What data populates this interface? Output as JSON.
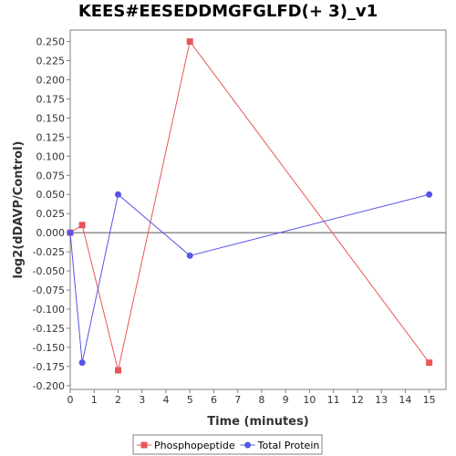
{
  "chart_data": {
    "type": "line",
    "title": "KEES#EESEDDMGFGLFD(+ 3)_v1",
    "xlabel": "Time (minutes)",
    "ylabel": "log2(dDAVP/Control)",
    "xlim": [
      0,
      15.7
    ],
    "ylim": [
      -0.205,
      0.265
    ],
    "x_ticks": [
      0,
      1,
      2,
      3,
      4,
      5,
      6,
      7,
      8,
      9,
      10,
      11,
      12,
      13,
      14,
      15
    ],
    "x_tick_labels": [
      "0",
      "1",
      "2",
      "3",
      "4",
      "5",
      "6",
      "7",
      "8",
      "9",
      "10",
      "11",
      "12",
      "13",
      "14",
      "15"
    ],
    "y_ticks": [
      0.25,
      0.225,
      0.2,
      0.175,
      0.15,
      0.125,
      0.1,
      0.075,
      0.05,
      0.025,
      0.0,
      -0.025,
      -0.05,
      -0.075,
      -0.1,
      -0.125,
      -0.15,
      -0.175,
      -0.2
    ],
    "y_tick_labels": [
      "0.250",
      "0.225",
      "0.200",
      "0.175",
      "0.150",
      "0.125",
      "0.100",
      "0.075",
      "0.050",
      "0.025",
      "0.000",
      "-0.025",
      "-0.050",
      "-0.075",
      "-0.100",
      "-0.125",
      "-0.150",
      "-0.175",
      "-0.200"
    ],
    "zero_line": true,
    "grid": false,
    "legend_position": "bottom",
    "series": [
      {
        "name": "Phosphopeptide",
        "color": "#e8555a",
        "marker": "square",
        "x": [
          0,
          0.5,
          2,
          5,
          15
        ],
        "y": [
          0.0,
          0.01,
          -0.18,
          0.25,
          -0.17
        ]
      },
      {
        "name": "Total Protein",
        "color": "#5555e8",
        "marker": "circle",
        "x": [
          0,
          0.5,
          2,
          5,
          15
        ],
        "y": [
          0.0,
          -0.17,
          0.05,
          -0.03,
          0.05
        ]
      }
    ]
  }
}
